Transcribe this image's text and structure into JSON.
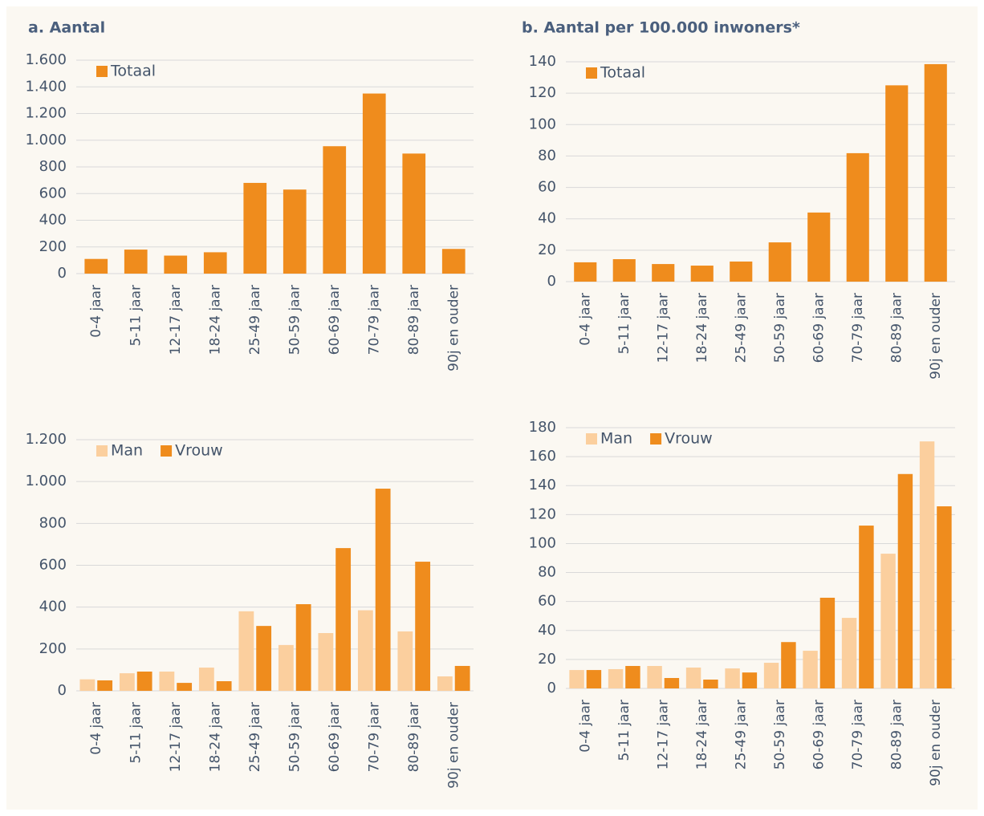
{
  "chart_data": [
    {
      "type": "bar",
      "title": "a. Aantal",
      "categories": [
        "0-4 jaar",
        "5-11 jaar",
        "12-17 jaar",
        "18-24 jaar",
        "25-49 jaar",
        "50-59 jaar",
        "60-69 jaar",
        "70-79 jaar",
        "80-89 jaar",
        "90j en ouder"
      ],
      "series": [
        {
          "name": "Totaal",
          "color": "#ef8c1d",
          "values": [
            110,
            180,
            135,
            160,
            680,
            630,
            955,
            1350,
            900,
            185
          ]
        }
      ],
      "ylim": [
        0,
        1600
      ],
      "yticks": [
        0,
        200,
        400,
        600,
        800,
        {
          "value": 1000,
          "label": "1.000"
        },
        {
          "value": 1200,
          "label": "1.200"
        },
        {
          "value": 1400,
          "label": "1.400"
        },
        {
          "value": 1600,
          "label": "1.600"
        }
      ],
      "grid": true,
      "legend": "upper left"
    },
    {
      "type": "bar",
      "title": "b. Aantal per 100.000 inwoners*",
      "categories": [
        "0-4 jaar",
        "5-11 jaar",
        "12-17 jaar",
        "18-24 jaar",
        "25-49 jaar",
        "50-59 jaar",
        "60-69 jaar",
        "70-79 jaar",
        "80-89 jaar",
        "90j en ouder"
      ],
      "series": [
        {
          "name": "Totaal",
          "color": "#ef8c1d",
          "values": [
            12.3,
            14.3,
            11.2,
            10.2,
            12.8,
            25,
            44,
            81.8,
            125,
            138.5
          ]
        }
      ],
      "ylim": [
        0,
        140
      ],
      "yticks": [
        0,
        20,
        40,
        60,
        80,
        100,
        120,
        140
      ],
      "grid": true,
      "legend": "upper left"
    },
    {
      "type": "bar",
      "categories": [
        "0-4 jaar",
        "5-11 jaar",
        "12-17 jaar",
        "18-24 jaar",
        "25-49 jaar",
        "50-59 jaar",
        "60-69 jaar",
        "70-79 jaar",
        "80-89 jaar",
        "90j en ouder"
      ],
      "series": [
        {
          "name": "Man",
          "color": "#fbcf9e",
          "values": [
            55,
            84,
            92,
            111,
            380,
            219,
            276,
            385,
            284,
            69
          ]
        },
        {
          "name": "Vrouw",
          "color": "#ef8c1d",
          "values": [
            50,
            92,
            38,
            46,
            310,
            414,
            682,
            966,
            617,
            119
          ]
        }
      ],
      "ylim": [
        0,
        1200
      ],
      "yticks": [
        0,
        200,
        400,
        600,
        800,
        {
          "value": 1000,
          "label": "1.000"
        },
        {
          "value": 1200,
          "label": "1.200"
        }
      ],
      "grid": true,
      "legend": "upper left"
    },
    {
      "type": "bar",
      "categories": [
        "0-4 jaar",
        "5-11 jaar",
        "12-17 jaar",
        "18-24 jaar",
        "25-49 jaar",
        "50-59 jaar",
        "60-69 jaar",
        "70-79 jaar",
        "80-89 jaar",
        "90j en ouder"
      ],
      "series": [
        {
          "name": "Man",
          "color": "#fbcf9e",
          "values": [
            12.7,
            13.3,
            15.5,
            14.4,
            13.8,
            17.7,
            26,
            48.7,
            93,
            170.5
          ]
        },
        {
          "name": "Vrouw",
          "color": "#ef8c1d",
          "values": [
            12.7,
            15.5,
            7.2,
            6.1,
            11,
            32,
            62.6,
            112.4,
            148,
            125.7
          ]
        }
      ],
      "ylim": [
        0,
        180
      ],
      "yticks": [
        0,
        20,
        40,
        60,
        80,
        100,
        120,
        140,
        160,
        180
      ],
      "grid": true,
      "legend": "upper left"
    }
  ]
}
